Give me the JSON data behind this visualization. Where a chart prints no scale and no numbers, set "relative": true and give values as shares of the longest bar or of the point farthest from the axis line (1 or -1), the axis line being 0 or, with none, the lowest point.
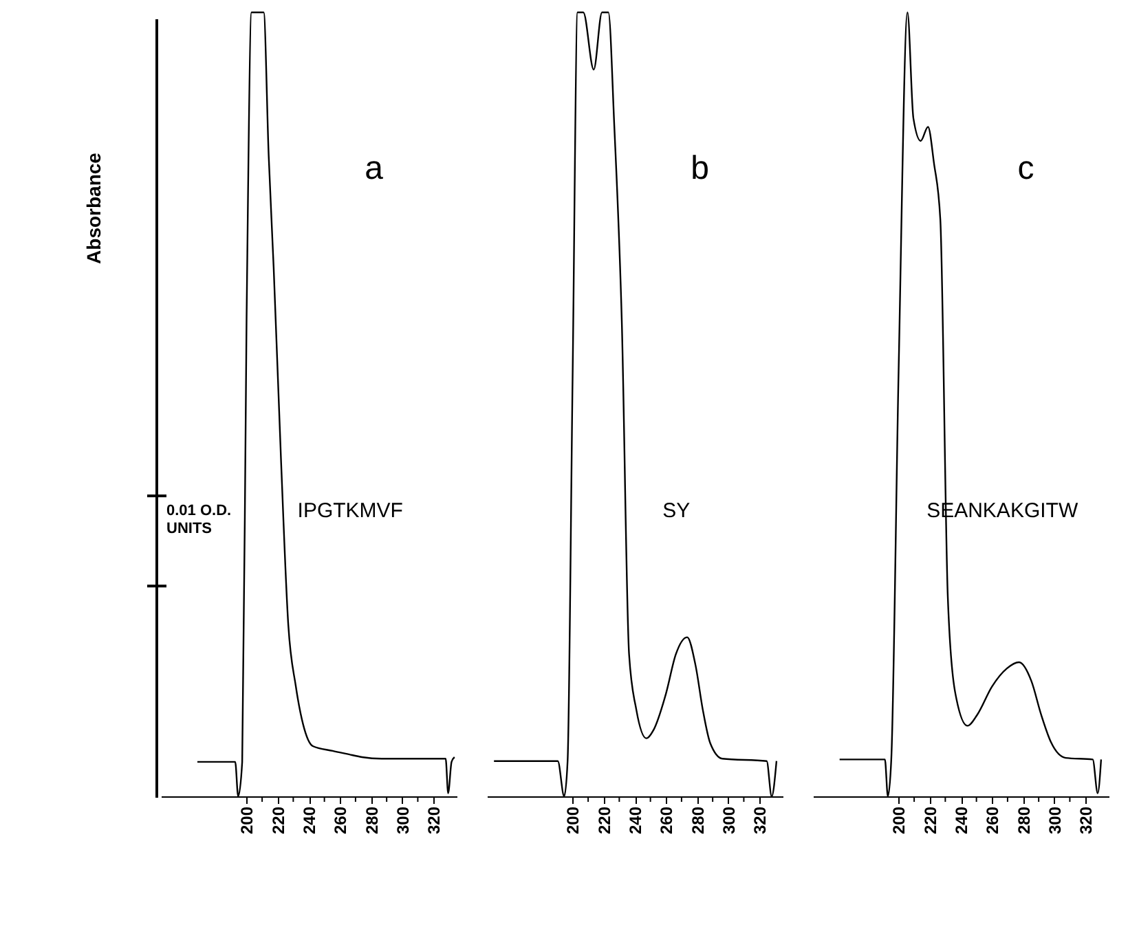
{
  "chart_data": [
    {
      "type": "line",
      "title": "a",
      "ylabel": "Absorbance",
      "relative": true,
      "color": "#000000",
      "annotations": [
        "0.01 O.D. UNITS",
        "IPGTKMVF"
      ],
      "x": [
        168.4,
        192.7,
        194.6,
        197.2,
        200,
        203.2,
        211,
        214.2,
        217.4,
        222.1,
        226.8,
        231.6,
        236.3,
        242.6,
        255.3,
        264.7,
        274.2,
        286.8,
        327.9,
        329.5,
        331.7,
        333.6
      ],
      "values": [
        0.044,
        0.044,
        0,
        0.044,
        0.608,
        1,
        1,
        0.818,
        0.675,
        0.431,
        0.219,
        0.141,
        0.092,
        0.064,
        0.058,
        0.054,
        0.05,
        0.048,
        0.048,
        0.004,
        0.044,
        0.05
      ],
      "xlim": [
        145,
        335
      ],
      "xticks": [
        200,
        {
          "value": 210,
          "label": null
        },
        220,
        {
          "value": 230,
          "label": null
        },
        240,
        {
          "value": 250,
          "label": null
        },
        260,
        {
          "value": 270,
          "label": null
        },
        280,
        {
          "value": 290,
          "label": null
        },
        300,
        {
          "value": 310,
          "label": null
        },
        320
      ]
    },
    {
      "type": "line",
      "title": "b",
      "relative": true,
      "color": "#000000",
      "annotations": [
        "SY"
      ],
      "x": [
        149.5,
        190.5,
        194.6,
        196.8,
        200,
        203.2,
        206.9,
        213.6,
        218.9,
        223,
        226.8,
        231.6,
        236.3,
        241,
        247.4,
        252.1,
        260,
        266.3,
        273.6,
        279,
        283.7,
        288.4,
        296.3,
        324.7,
        327.9,
        331
      ],
      "values": [
        0.045,
        0.045,
        0,
        0.045,
        0.532,
        1,
        1,
        0.927,
        1,
        1,
        0.855,
        0.607,
        0.181,
        0.11,
        0.074,
        0.085,
        0.131,
        0.181,
        0.203,
        0.167,
        0.11,
        0.068,
        0.048,
        0.045,
        0,
        0.045
      ],
      "xlim": [
        145,
        335
      ],
      "xticks": [
        200,
        {
          "value": 210,
          "label": null
        },
        220,
        {
          "value": 230,
          "label": null
        },
        240,
        {
          "value": 250,
          "label": null
        },
        260,
        {
          "value": 270,
          "label": null
        },
        280,
        {
          "value": 290,
          "label": null
        },
        300,
        {
          "value": 310,
          "label": null
        },
        320
      ]
    },
    {
      "type": "line",
      "title": "c",
      "relative": true,
      "color": "#000000",
      "annotations": [
        "SEANKAKGITW"
      ],
      "x": [
        162.1,
        191.2,
        193.1,
        195.3,
        200,
        205.7,
        209.5,
        214.2,
        218.9,
        222.7,
        226.8,
        231.6,
        236.3,
        244.2,
        250.5,
        260,
        269.5,
        277.4,
        285.3,
        291.6,
        297.9,
        307.4,
        324.7,
        327.9,
        330.1
      ],
      "values": [
        0.047,
        0.047,
        0,
        0.047,
        0.542,
        1,
        0.865,
        0.836,
        0.854,
        0.808,
        0.736,
        0.255,
        0.133,
        0.09,
        0.104,
        0.14,
        0.163,
        0.171,
        0.147,
        0.104,
        0.069,
        0.049,
        0.047,
        0.004,
        0.047
      ],
      "xlim": [
        145,
        335
      ],
      "xticks": [
        200,
        {
          "value": 210,
          "label": null
        },
        220,
        {
          "value": 230,
          "label": null
        },
        240,
        {
          "value": 250,
          "label": null
        },
        260,
        {
          "value": 270,
          "label": null
        },
        280,
        {
          "value": 290,
          "label": null
        },
        300,
        {
          "value": 310,
          "label": null
        },
        320
      ]
    }
  ]
}
